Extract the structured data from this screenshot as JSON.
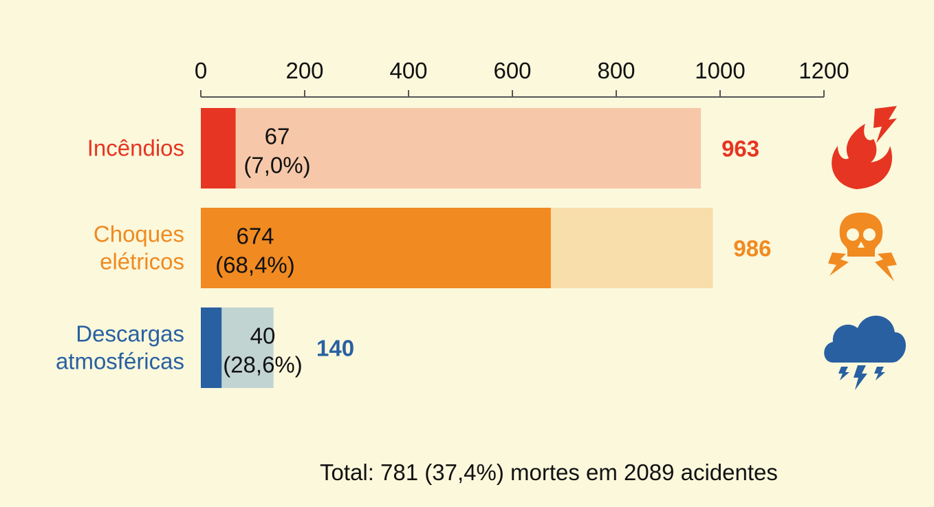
{
  "chart_data": {
    "type": "bar",
    "orientation": "horizontal",
    "xlim": [
      0,
      1200
    ],
    "ticks": [
      0,
      200,
      400,
      600,
      800,
      1000,
      1200
    ],
    "categories": [
      {
        "label_lines": [
          "Incêndios"
        ],
        "total": 963,
        "deaths": 67,
        "value_label": "67",
        "percent_label": "(7,0%)",
        "total_label": "963",
        "color": "#e63522",
        "light_color": "#f6c8a9",
        "total_color": "#e63522",
        "icon": "fire-bolt-icon"
      },
      {
        "label_lines": [
          "Choques",
          "elétricos"
        ],
        "total": 986,
        "deaths": 674,
        "value_label": "674",
        "percent_label": "(68,4%)",
        "total_label": "986",
        "color": "#f08a21",
        "light_color": "#f8deaa",
        "total_color": "#f08a21",
        "icon": "skull-bolt-icon"
      },
      {
        "label_lines": [
          "Descargas",
          "atmosféricas"
        ],
        "total": 140,
        "deaths": 40,
        "value_label": "40",
        "percent_label": "(28,6%)",
        "total_label": "140",
        "color": "#2860a1",
        "light_color": "#c2d4d2",
        "total_color": "#2860a1",
        "icon": "storm-cloud-icon"
      }
    ]
  },
  "footer": {
    "total_text": "Total: 781 (37,4%) mortes em 2089 acidentes"
  }
}
